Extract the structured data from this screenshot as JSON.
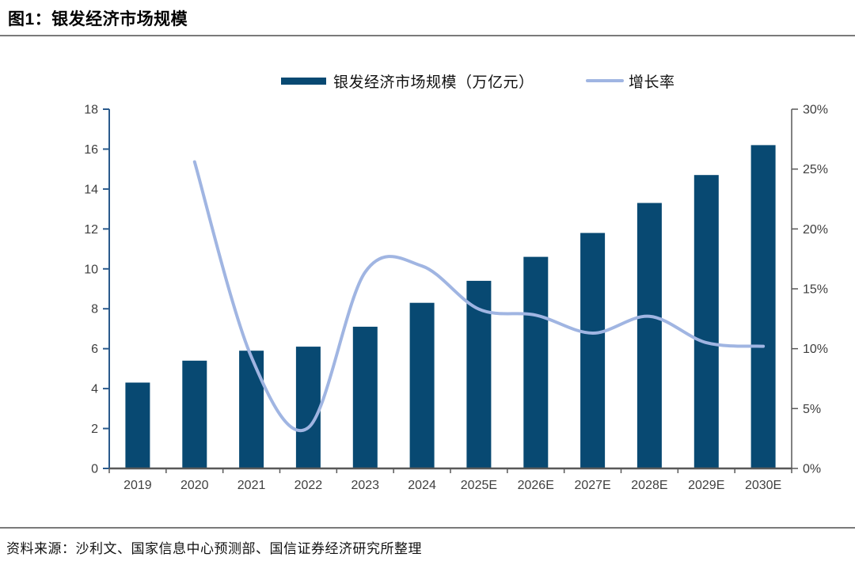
{
  "figure": {
    "title": "图1：银发经济市场规模",
    "source": "资料来源：沙利文、国家信息中心预测部、国信证券经济研究所整理"
  },
  "chart_data": {
    "type": "bar+line combo",
    "title": "图1：银发经济市场规模",
    "categories": [
      "2019",
      "2020",
      "2021",
      "2022",
      "2023",
      "2024",
      "2025E",
      "2026E",
      "2027E",
      "2028E",
      "2029E",
      "2030E"
    ],
    "series": [
      {
        "name": "银发经济市场规模（万亿元）",
        "type": "bar",
        "axis": "left",
        "color": "#084972",
        "values": [
          4.3,
          5.4,
          5.9,
          6.1,
          7.1,
          8.3,
          9.4,
          10.6,
          11.8,
          13.3,
          14.7,
          16.2
        ]
      },
      {
        "name": "增长率",
        "type": "line",
        "axis": "right",
        "color": "#a0b5e2",
        "unit": "%",
        "values": [
          null,
          25.6,
          9.3,
          3.4,
          16.4,
          16.9,
          13.3,
          12.8,
          11.3,
          12.7,
          10.5,
          10.2
        ]
      }
    ],
    "left_axis": {
      "min": 0,
      "max": 18,
      "step": 2,
      "suffix": ""
    },
    "right_axis": {
      "min": 0,
      "max": 30,
      "step": 5,
      "suffix": "%"
    },
    "legend_position": "top",
    "grid": false,
    "colors": {
      "bar": "#084972",
      "line": "#a0b5e2",
      "left_spine": "#2a5a8c",
      "bottom_spine": "#595959",
      "right_spine": "#595959",
      "tick_label": "#3f3f3f"
    }
  }
}
